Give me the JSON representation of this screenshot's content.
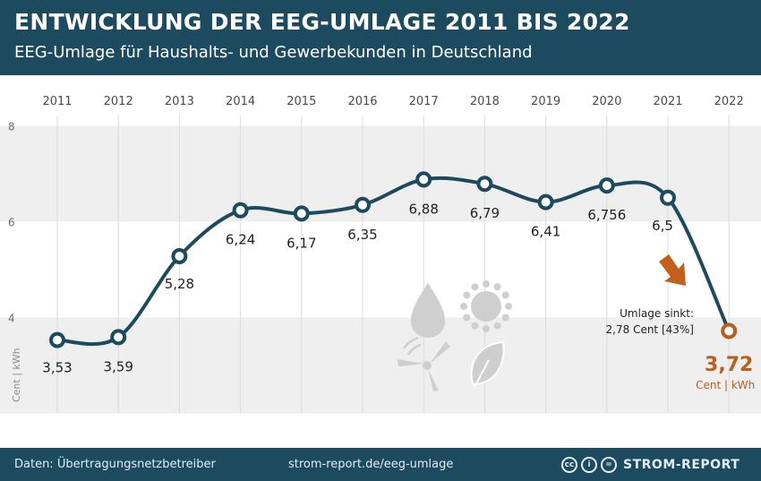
{
  "header": {
    "title": "ENTWICKLUNG DER EEG-UMLAGE 2011 BIS 2022",
    "subtitle": "EEG-Umlage für Haushalts- und Gewerbekunden in Deutschland"
  },
  "chart_data": {
    "type": "line",
    "title": "ENTWICKLUNG DER EEG-UMLAGE 2011 BIS 2022",
    "subtitle": "EEG-Umlage für Haushalts- und Gewerbekunden in Deutschland",
    "xlabel": "",
    "ylabel": "Cent | kWh",
    "categories": [
      "2011",
      "2012",
      "2013",
      "2014",
      "2015",
      "2016",
      "2017",
      "2018",
      "2019",
      "2020",
      "2021",
      "2022"
    ],
    "values": [
      3.53,
      3.59,
      5.28,
      6.24,
      6.17,
      6.35,
      6.88,
      6.79,
      6.41,
      6.756,
      6.5,
      3.72
    ],
    "labels": [
      "3,53",
      "3,59",
      "5,28",
      "6,24",
      "6,17",
      "6,35",
      "6,88",
      "6,79",
      "6,41",
      "6,756",
      "6,5",
      "3,72"
    ],
    "yticks": [
      4,
      6,
      8
    ],
    "ytick_labels": [
      "4",
      "6",
      "8"
    ],
    "ylim": [
      2,
      8
    ],
    "highlight": {
      "value_label": "3,72",
      "unit": "Cent | kWh"
    },
    "annotation": {
      "line1": "Umlage sinkt:",
      "line2": "2,78 Cent [43%]"
    },
    "colors": {
      "line": "#1c4a5e",
      "highlight": "#b85f1c",
      "band": "#efefef",
      "arrow": "#c2601a",
      "icons": "#cfcfcf"
    }
  },
  "footer": {
    "source": "Daten: Übertragungsnetzbetreiber",
    "url": "strom-report.de/eeg-umlage",
    "brand": "STROM-REPORT",
    "license_icons": [
      "creative-commons-icon",
      "attribution-icon",
      "no-derivatives-icon"
    ],
    "license_glyphs": [
      "cc",
      "i",
      "="
    ]
  }
}
